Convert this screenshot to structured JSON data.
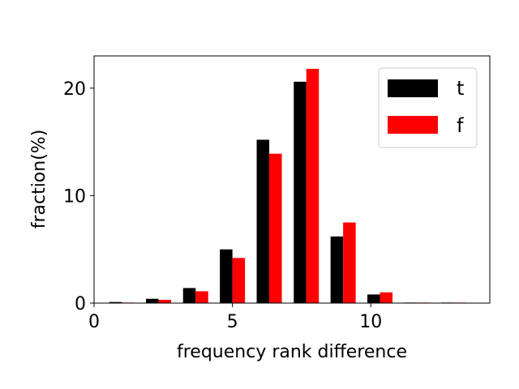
{
  "chart_data": {
    "type": "bar",
    "xlabel": "frequency rank difference",
    "ylabel": "fraction(%)",
    "x": [
      1,
      2.33,
      3.67,
      5,
      6.33,
      7.67,
      9,
      10.33,
      11.67,
      13
    ],
    "xlim": [
      0,
      14.3
    ],
    "ylim": [
      0,
      23
    ],
    "xticks": [
      0,
      5,
      10
    ],
    "yticks": [
      0,
      10,
      20
    ],
    "grid": false,
    "legend_position": "top-right",
    "series": [
      {
        "name": "t",
        "color": "#000000",
        "values": [
          0.1,
          0.4,
          1.4,
          5.0,
          15.2,
          20.6,
          6.2,
          0.8,
          0.05,
          0.05
        ]
      },
      {
        "name": "f",
        "color": "#ff0000",
        "values": [
          0.05,
          0.3,
          1.1,
          4.2,
          13.9,
          21.8,
          7.5,
          1.0,
          0.05,
          0.05
        ]
      }
    ]
  }
}
